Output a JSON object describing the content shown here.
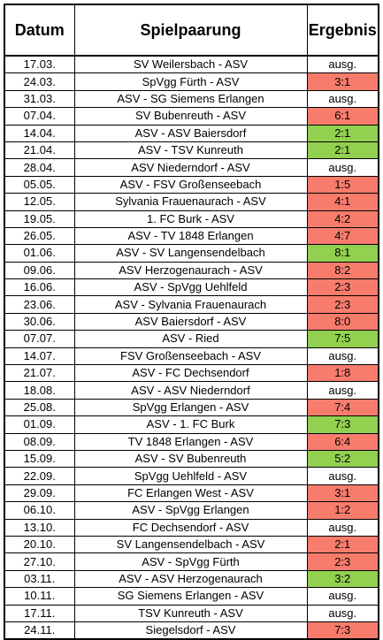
{
  "header": {
    "date": "Datum",
    "match": "Spielpaarung",
    "result": "Ergebnis"
  },
  "colors": {
    "loss": "#f87c6c",
    "win": "#92d050",
    "none": "#ffffff"
  },
  "rows": [
    {
      "date": "17.03.",
      "match": "SV Weilersbach - ASV",
      "result": "ausg.",
      "status": "none"
    },
    {
      "date": "24.03.",
      "match": "SpVgg Fürth - ASV",
      "result": "3:1",
      "status": "red"
    },
    {
      "date": "31.03.",
      "match": "ASV - SG Siemens Erlangen",
      "result": "ausg.",
      "status": "none"
    },
    {
      "date": "07.04.",
      "match": "SV Bubenreuth - ASV",
      "result": "6:1",
      "status": "red"
    },
    {
      "date": "14.04.",
      "match": "ASV - ASV Baiersdorf",
      "result": "2:1",
      "status": "green"
    },
    {
      "date": "21.04.",
      "match": "ASV - TSV Kunreuth",
      "result": "2:1",
      "status": "green"
    },
    {
      "date": "28.04.",
      "match": "ASV Niederndorf - ASV",
      "result": "ausg.",
      "status": "none"
    },
    {
      "date": "05.05.",
      "match": "ASV - FSV Großenseebach",
      "result": "1:5",
      "status": "red"
    },
    {
      "date": "12.05.",
      "match": "Sylvania Frauenaurach - ASV",
      "result": "4:1",
      "status": "red"
    },
    {
      "date": "19.05.",
      "match": "1. FC Burk - ASV",
      "result": "4:2",
      "status": "red"
    },
    {
      "date": "26.05.",
      "match": "ASV - TV 1848 Erlangen",
      "result": "4:7",
      "status": "red"
    },
    {
      "date": "01.06.",
      "match": "ASV - SV Langensendelbach",
      "result": "8:1",
      "status": "green"
    },
    {
      "date": "09.06.",
      "match": "ASV Herzogenaurach - ASV",
      "result": "8:2",
      "status": "red"
    },
    {
      "date": "16.06.",
      "match": "ASV - SpVgg Uehlfeld",
      "result": "2:3",
      "status": "red"
    },
    {
      "date": "23.06.",
      "match": "ASV - Sylvania Frauenaurach",
      "result": "2:3",
      "status": "red"
    },
    {
      "date": "30.06.",
      "match": "ASV Baiersdorf - ASV",
      "result": "8:0",
      "status": "red"
    },
    {
      "date": "07.07.",
      "match": "ASV - Ried",
      "result": "7:5",
      "status": "green"
    },
    {
      "date": "14.07.",
      "match": "FSV Großenseebach - ASV",
      "result": "ausg.",
      "status": "none"
    },
    {
      "date": "21.07.",
      "match": "ASV - FC Dechsendorf",
      "result": "1:8",
      "status": "red"
    },
    {
      "date": "18.08.",
      "match": "ASV - ASV Niederndorf",
      "result": "ausg.",
      "status": "none"
    },
    {
      "date": "25.08.",
      "match": "SpVgg Erlangen - ASV",
      "result": "7:4",
      "status": "red"
    },
    {
      "date": "01.09.",
      "match": "ASV - 1. FC Burk",
      "result": "7:3",
      "status": "green"
    },
    {
      "date": "08.09.",
      "match": "TV 1848 Erlangen - ASV",
      "result": "6:4",
      "status": "red"
    },
    {
      "date": "15.09.",
      "match": "ASV - SV Bubenreuth",
      "result": "5:2",
      "status": "green"
    },
    {
      "date": "22.09.",
      "match": "SpVgg Uehlfeld - ASV",
      "result": "ausg.",
      "status": "none"
    },
    {
      "date": "29.09.",
      "match": "FC Erlangen West - ASV",
      "result": "3:1",
      "status": "red"
    },
    {
      "date": "06.10.",
      "match": "ASV - SpVgg Erlangen",
      "result": "1:2",
      "status": "red"
    },
    {
      "date": "13.10.",
      "match": "FC Dechsendorf - ASV",
      "result": "ausg.",
      "status": "none"
    },
    {
      "date": "20.10.",
      "match": "SV Langensendelbach - ASV",
      "result": "2:1",
      "status": "red"
    },
    {
      "date": "27.10.",
      "match": "ASV - SpVgg Fürth",
      "result": "2:3",
      "status": "red"
    },
    {
      "date": "03.11.",
      "match": "ASV - ASV Herzogenaurach",
      "result": "3:2",
      "status": "green"
    },
    {
      "date": "10.11.",
      "match": "SG Siemens Erlangen - ASV",
      "result": "ausg.",
      "status": "none"
    },
    {
      "date": "17.11.",
      "match": "TSV Kunreuth - ASV",
      "result": "ausg.",
      "status": "none"
    },
    {
      "date": "24.11.",
      "match": "Siegelsdorf - ASV",
      "result": "7:3",
      "status": "red"
    }
  ]
}
